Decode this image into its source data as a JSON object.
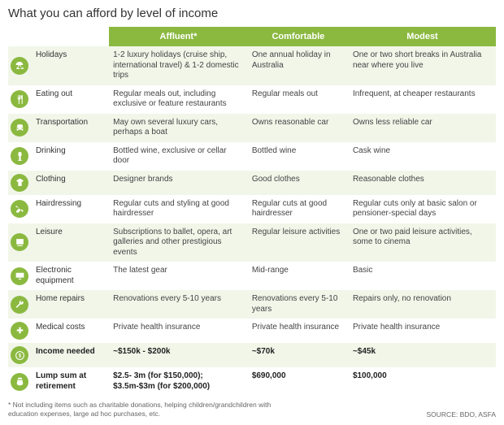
{
  "title": "What you can afford by level of income",
  "colors": {
    "accent": "#8bb940",
    "row_alt": "#f1f6e9",
    "background": "#ffffff",
    "text": "#333333",
    "header_text": "#ffffff"
  },
  "columns": {
    "affluent": "Affluent*",
    "comfortable": "Comfortable",
    "modest": "Modest"
  },
  "rows": [
    {
      "icon": "holiday",
      "label": "Holidays",
      "affluent": "1-2 luxury holidays (cruise ship, international travel) & 1-2 domestic trips",
      "comfortable": "One annual holiday in Australia",
      "modest": "One or two short breaks in Australia near where you live",
      "bold": false
    },
    {
      "icon": "eating",
      "label": "Eating out",
      "affluent": "Regular meals out, including exclusive or feature restaurants",
      "comfortable": "Regular meals out",
      "modest": "Infrequent, at cheaper restaurants",
      "bold": false
    },
    {
      "icon": "transport",
      "label": "Transportation",
      "affluent": "May own several luxury cars, perhaps a boat",
      "comfortable": "Owns reasonable car",
      "modest": "Owns less reliable car",
      "bold": false
    },
    {
      "icon": "drinking",
      "label": "Drinking",
      "affluent": "Bottled wine, exclusive or cellar door",
      "comfortable": "Bottled wine",
      "modest": "Cask wine",
      "bold": false
    },
    {
      "icon": "clothing",
      "label": "Clothing",
      "affluent": "Designer brands",
      "comfortable": "Good clothes",
      "modest": "Reasonable clothes",
      "bold": false
    },
    {
      "icon": "hair",
      "label": "Hairdressing",
      "affluent": "Regular cuts and styling at good hairdresser",
      "comfortable": "Regular cuts at good hairdresser",
      "modest": "Regular cuts only at basic salon or pensioner-special days",
      "bold": false
    },
    {
      "icon": "leisure",
      "label": "Leisure",
      "affluent": "Subscriptions to ballet, opera, art galleries and other prestigious events",
      "comfortable": "Regular leisure activities",
      "modest": "One or two paid leisure activities, some to cinema",
      "bold": false
    },
    {
      "icon": "electronic",
      "label": "Electronic equipment",
      "affluent": "The latest gear",
      "comfortable": "Mid-range",
      "modest": "Basic",
      "bold": false
    },
    {
      "icon": "repairs",
      "label": "Home repairs",
      "affluent": "Renovations every 5-10 years",
      "comfortable": "Renovations every 5-10 years",
      "modest": "Repairs only, no renovation",
      "bold": false
    },
    {
      "icon": "medical",
      "label": "Medical costs",
      "affluent": "Private health insurance",
      "comfortable": "Private health insurance",
      "modest": "Private health insurance",
      "bold": false
    },
    {
      "icon": "income",
      "label": "Income needed",
      "affluent": "~$150k - $200k",
      "comfortable": "~$70k",
      "modest": "~$45k",
      "bold": true
    },
    {
      "icon": "lump",
      "label": "Lump sum at retirement",
      "affluent": "$2.5- 3m (for $150,000); $3.5m-$3m (for $200,000)",
      "comfortable": "$690,000",
      "modest": "$100,000",
      "bold": true
    }
  ],
  "footnote": "* Not including items such as charitable donations, helping children/grandchildren with education expenses, large ad hoc purchases, etc.",
  "source": "SOURCE: BDO, ASFA"
}
